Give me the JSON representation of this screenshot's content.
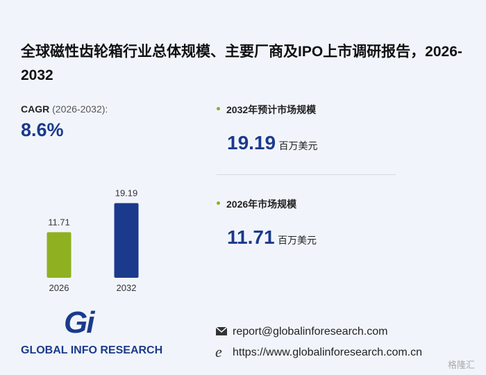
{
  "title": "全球磁性齿轮箱行业总体规模、主要厂商及IPO上市调研报告，2026-2032",
  "cagr": {
    "label": "CAGR",
    "period": "(2026-2032):",
    "value": "8.6%"
  },
  "stats": [
    {
      "label": "2032年预计市场规模",
      "value": 19.19,
      "unit": "百万美元"
    },
    {
      "label": "2026年市场规模",
      "value": 11.71,
      "unit": "百万美元"
    }
  ],
  "chart_data": {
    "type": "bar",
    "categories": [
      "2026",
      "2032"
    ],
    "values": [
      11.71,
      19.19
    ],
    "colors": [
      "#8fb021",
      "#1b3a8c"
    ]
  },
  "logo": {
    "mark": "Gi",
    "text": "GLOBAL INFO RESEARCH"
  },
  "contact": {
    "email": "report@globalinforesearch.com",
    "website": "https://www.globalinforesearch.com.cn"
  },
  "watermark": "格隆汇"
}
